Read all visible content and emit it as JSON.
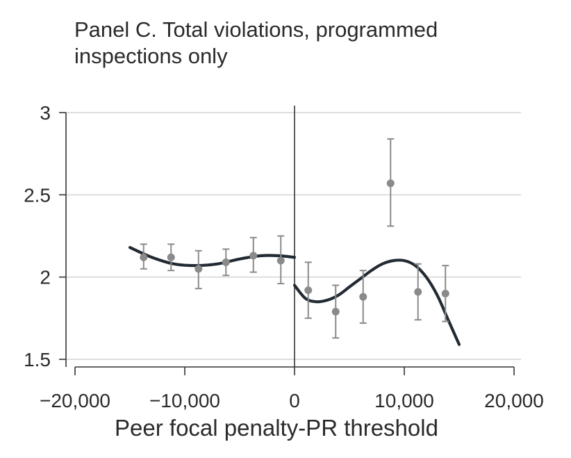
{
  "chart_data": {
    "type": "scatter",
    "title_lines": [
      "Panel C. Total violations, programmed",
      "inspections only"
    ],
    "xlabel": "Peer focal penalty-PR threshold",
    "ylabel": "",
    "xlim": [
      -21000,
      21000
    ],
    "ylim": [
      1.45,
      3.05
    ],
    "xticks": [
      -20000,
      -10000,
      0,
      10000,
      20000
    ],
    "xtick_labels": [
      "−20,000",
      "−10,000",
      "0",
      "10,000",
      "20,000"
    ],
    "yticks": [
      1.5,
      2,
      2.5,
      3
    ],
    "ytick_labels": [
      "1.5",
      "2",
      "2.5",
      "3"
    ],
    "grid": "horizontal",
    "cutoff_x": 0,
    "colors": {
      "points": "#8a8a8a",
      "fit": "#222a33",
      "grid": "#d4d4d4",
      "axis": "#333333"
    },
    "points": [
      {
        "x": -13750,
        "y": 2.12,
        "lo": 2.05,
        "hi": 2.2
      },
      {
        "x": -11250,
        "y": 2.12,
        "lo": 2.04,
        "hi": 2.2
      },
      {
        "x": -8750,
        "y": 2.05,
        "lo": 1.93,
        "hi": 2.16
      },
      {
        "x": -6250,
        "y": 2.09,
        "lo": 2.01,
        "hi": 2.17
      },
      {
        "x": -3750,
        "y": 2.13,
        "lo": 2.03,
        "hi": 2.24
      },
      {
        "x": -1250,
        "y": 2.1,
        "lo": 1.96,
        "hi": 2.25
      },
      {
        "x": 1250,
        "y": 1.92,
        "lo": 1.75,
        "hi": 2.09
      },
      {
        "x": 3750,
        "y": 1.79,
        "lo": 1.63,
        "hi": 1.95
      },
      {
        "x": 6250,
        "y": 1.88,
        "lo": 1.72,
        "hi": 2.04
      },
      {
        "x": 8750,
        "y": 2.57,
        "lo": 2.31,
        "hi": 2.84
      },
      {
        "x": 11250,
        "y": 1.91,
        "lo": 1.74,
        "hi": 2.08
      },
      {
        "x": 13750,
        "y": 1.9,
        "lo": 1.73,
        "hi": 2.07
      }
    ],
    "fit_left": [
      [
        -15000,
        2.18
      ],
      [
        -13000,
        2.12
      ],
      [
        -11000,
        2.08
      ],
      [
        -9000,
        2.07
      ],
      [
        -7000,
        2.08
      ],
      [
        -5000,
        2.11
      ],
      [
        -3000,
        2.13
      ],
      [
        -1500,
        2.13
      ],
      [
        0,
        2.12
      ]
    ],
    "fit_right": [
      [
        0,
        1.95
      ],
      [
        1000,
        1.87
      ],
      [
        2000,
        1.85
      ],
      [
        3000,
        1.86
      ],
      [
        4000,
        1.89
      ],
      [
        5000,
        1.94
      ],
      [
        6000,
        1.99
      ],
      [
        7000,
        2.04
      ],
      [
        8000,
        2.08
      ],
      [
        9000,
        2.1
      ],
      [
        10000,
        2.1
      ],
      [
        11000,
        2.07
      ],
      [
        12000,
        2.0
      ],
      [
        13000,
        1.89
      ],
      [
        14000,
        1.74
      ],
      [
        15000,
        1.59
      ]
    ]
  }
}
